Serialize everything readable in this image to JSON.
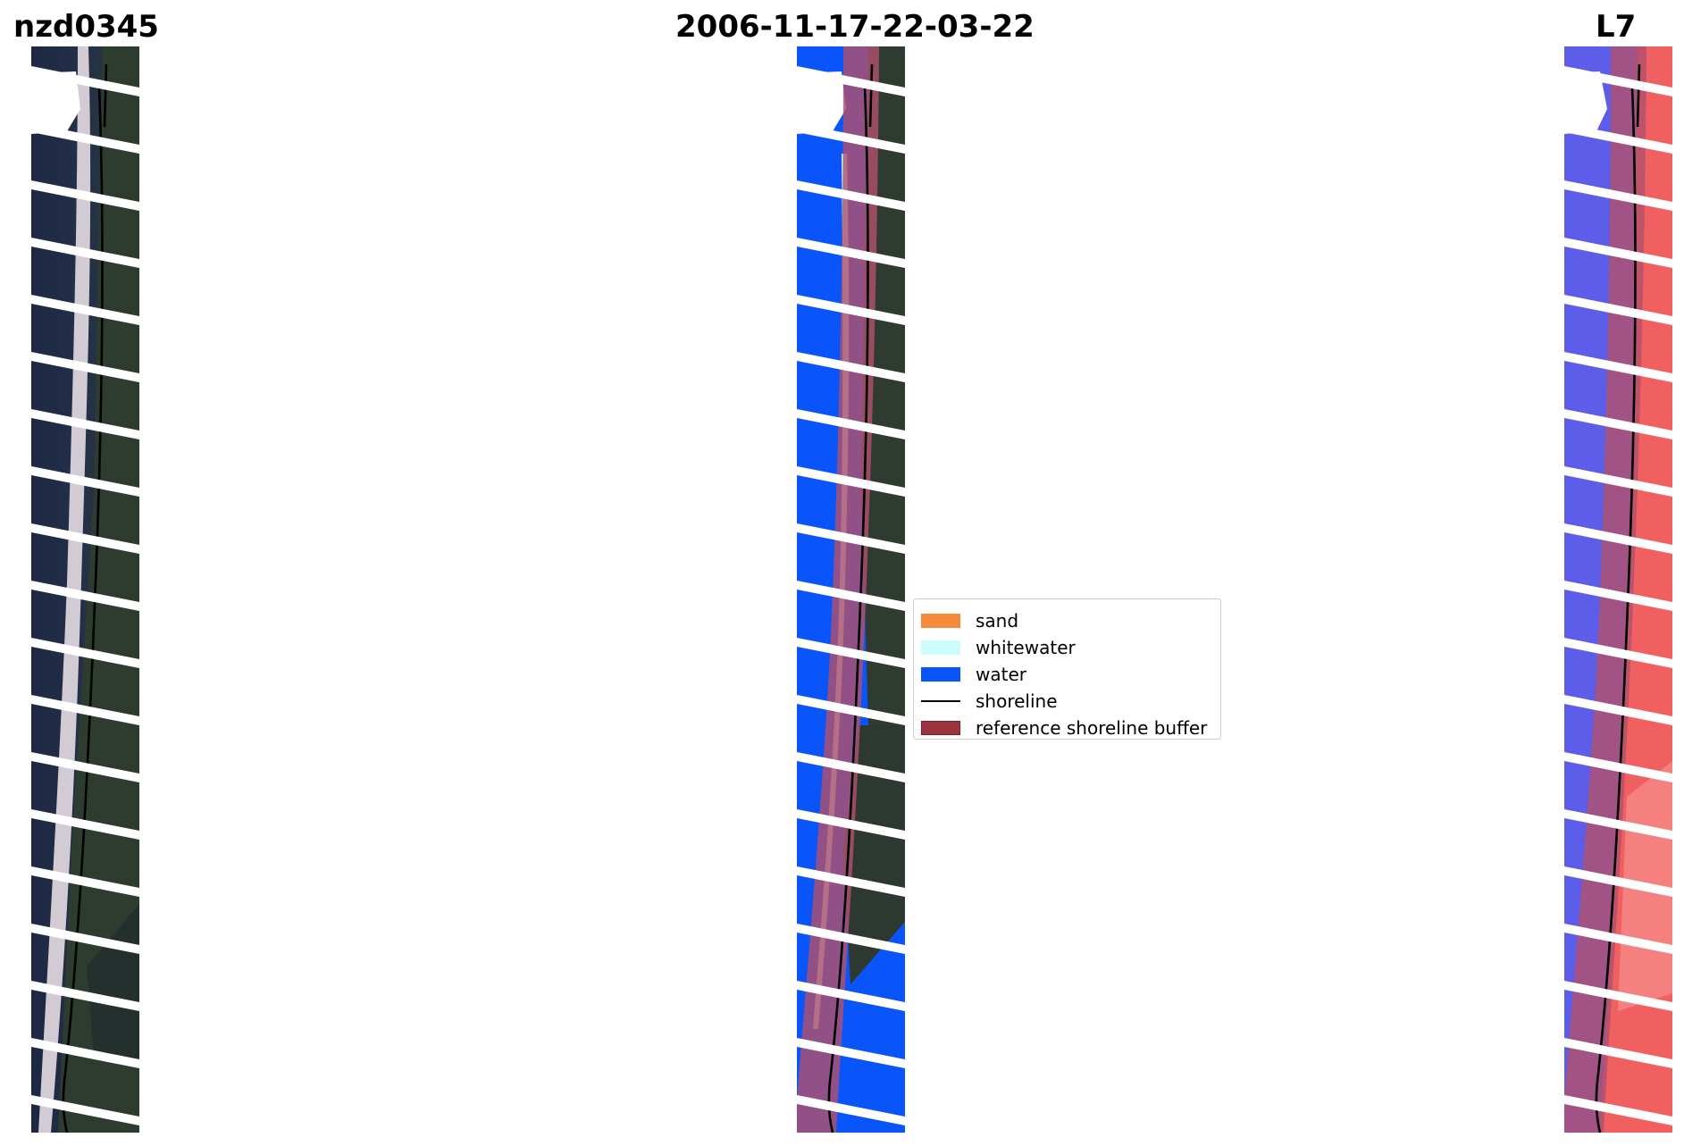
{
  "titles": {
    "site": "nzd0345",
    "date": "2006-11-17-22-03-22",
    "satellite": "L7"
  },
  "legend": {
    "items": [
      {
        "label": "sand",
        "kind": "patch",
        "color": "#f58a3b"
      },
      {
        "label": "whitewater",
        "kind": "patch",
        "color": "#ccfdfd"
      },
      {
        "label": "water",
        "kind": "patch",
        "color": "#0a55fa"
      },
      {
        "label": "shoreline",
        "kind": "line",
        "color": "#000000"
      },
      {
        "label": "reference shoreline buffer",
        "kind": "patch",
        "color": "#9e3340",
        "edge": "#7a1e28"
      }
    ]
  },
  "colors": {
    "ocean_rgb": "#202a42",
    "land_rgb": "#2f3b30",
    "surf": "#e9dfe4",
    "water_class": "#0a55fa",
    "whitewater_class": "#ccfdfd",
    "buffer": "#b0506e",
    "mndwi_water": "#5b5ce8",
    "mndwi_land": "#f05a5a"
  }
}
